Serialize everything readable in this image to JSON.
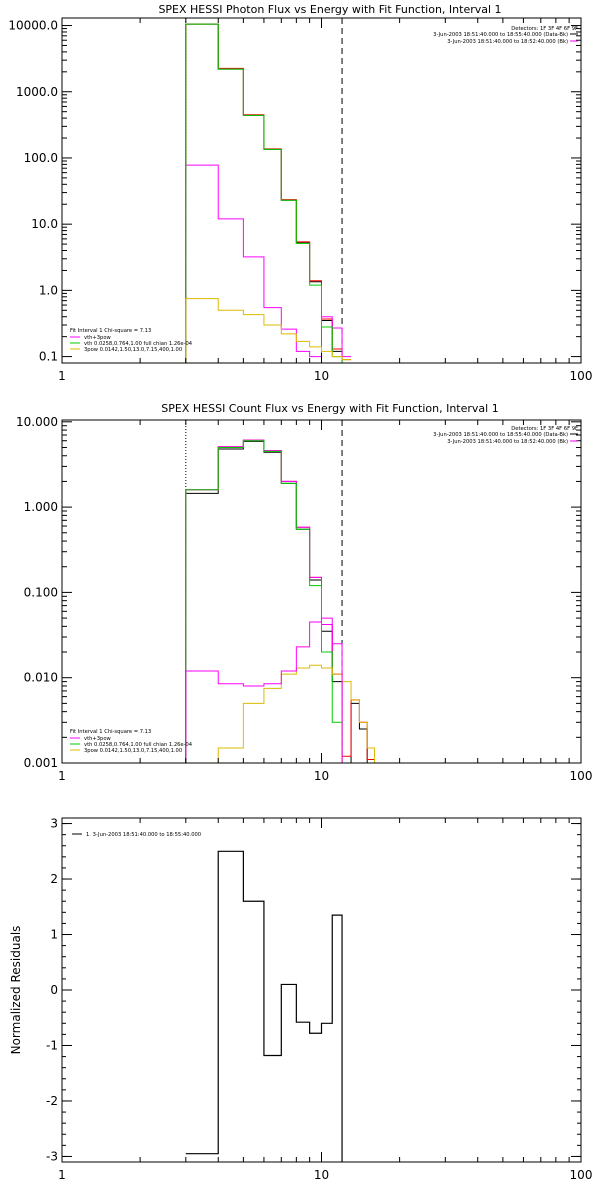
{
  "chart_data": [
    {
      "type": "line",
      "title": "SPEX HESSI Photon Flux vs Energy with Fit Function, Interval 1",
      "xscale": "log",
      "yscale": "log",
      "xlim": [
        1,
        100
      ],
      "ylim": [
        0.08,
        13000
      ],
      "x_ticks": [
        1,
        10,
        100
      ],
      "x_tick_labels": [
        "1",
        "10",
        "100"
      ],
      "y_ticks": [
        0.1,
        1,
        10,
        100,
        1000,
        10000
      ],
      "y_tick_labels": [
        "0.1",
        "1.0",
        "10.0",
        "100.0",
        "1000.0",
        "10000.0"
      ],
      "bin_edges": [
        3,
        4,
        5,
        6,
        7,
        8,
        9,
        10,
        11,
        12,
        13
      ],
      "vlines": [
        {
          "x": 3,
          "style": "dotted"
        },
        {
          "x": 12,
          "style": "dashed"
        }
      ],
      "series": [
        {
          "name": "",
          "color": "#000000",
          "values": [
            10500,
            2200,
            440,
            135,
            23,
            5.2,
            1.35,
            0.35,
            0.12,
            0.08
          ]
        },
        {
          "name": "",
          "color": "#ff0000",
          "values": [
            10500,
            2250,
            450,
            137,
            23.5,
            5.4,
            1.4,
            0.37,
            0.13,
            0.09
          ]
        },
        {
          "name": "vth+3pow",
          "color": "#ff00ff",
          "values": [
            78,
            12,
            3.2,
            0.55,
            0.26,
            0.12,
            0.1,
            0.4,
            0.27,
            0.1
          ]
        },
        {
          "name": "vth 0.0258,0.764,1.00  full chian 1.26e-04",
          "color": "#00cc00",
          "values": [
            10500,
            2200,
            440,
            135,
            23,
            5.1,
            1.2,
            0.28,
            0.1,
            0.08
          ]
        },
        {
          "name": "3pow 0.0142,1.50,13.0,7.15,400,1.00",
          "color": "#ddbb00",
          "values": [
            0.75,
            0.5,
            0.43,
            0.3,
            0.22,
            0.17,
            0.14,
            0.12,
            0.1,
            0.09
          ]
        }
      ],
      "legend_text": {
        "interval": "Fit Interval 1    Chi-square = 7.13",
        "detectors": "Detectors: 1F 3F 4F 6F 9F",
        "time_range_1": "3-Jun-2003 18:51:40.000 to 18:55:40.000 (Data-Bk)",
        "time_range_2": "3-Jun-2003 18:51:40.000 to 18:52:40.000 (Bk)"
      }
    },
    {
      "type": "line",
      "title": "SPEX HESSI Count Flux vs Energy with Fit Function, Interval 1",
      "xscale": "log",
      "yscale": "log",
      "xlim": [
        1,
        100
      ],
      "ylim": [
        0.001,
        10.5
      ],
      "x_ticks": [
        1,
        10,
        100
      ],
      "x_tick_labels": [
        "1",
        "10",
        "100"
      ],
      "y_ticks": [
        0.001,
        0.01,
        0.1,
        1,
        10
      ],
      "y_tick_labels": [
        "0.001",
        "0.010",
        "0.100",
        "1.000",
        "10.000"
      ],
      "bin_edges": [
        3,
        4,
        5,
        6,
        7,
        8,
        9,
        10,
        11,
        12,
        13,
        14,
        15,
        16,
        17,
        18
      ],
      "vlines": [
        {
          "x": 3,
          "style": "dotted"
        },
        {
          "x": 12,
          "style": "dashed"
        }
      ],
      "series": [
        {
          "name": "",
          "color": "#000000",
          "values": [
            1.45,
            4.8,
            5.9,
            4.4,
            1.9,
            0.55,
            0.14,
            0.035,
            0.009,
            0.0008,
            0.005,
            0.0025,
            0.0008,
            0.0008,
            0.0008
          ]
        },
        {
          "name": "",
          "color": "#ff0000",
          "values": [
            1.6,
            5.1,
            6.1,
            4.6,
            2.0,
            0.58,
            0.15,
            0.042,
            0.011,
            0.0012,
            0.0055,
            0.003,
            0.0011,
            0.0008,
            0.0008
          ]
        },
        {
          "name": "vth+3pow",
          "color": "#ff00ff",
          "values": [
            1.6,
            5.1,
            6.1,
            4.6,
            2.0,
            0.58,
            0.15,
            0.042,
            0.011,
            0.0008,
            0.0008,
            0.0008,
            0.0008,
            0.0008,
            0.0008
          ]
        },
        {
          "name": "vth 0.0258,0.764,1.00  full chian 1.26e-04",
          "color": "#00cc00",
          "values": [
            1.6,
            5.0,
            6.0,
            4.5,
            1.9,
            0.55,
            0.12,
            0.02,
            0.003,
            0.0008,
            0.0008,
            0.0008,
            0.0008,
            0.0008,
            0.0008
          ]
        },
        {
          "name": "3pow 0.0142,1.50,13.0,7.15,400,1.00",
          "color": "#ddbb00",
          "values": [
            0.0008,
            0.0015,
            0.005,
            0.0075,
            0.011,
            0.013,
            0.014,
            0.013,
            0.011,
            0.009,
            0.0055,
            0.003,
            0.0015,
            0.0008,
            0.0008
          ]
        },
        {
          "name": "",
          "color": "#ff00ff",
          "values": [
            0.012,
            0.0085,
            0.008,
            0.0085,
            0.012,
            0.023,
            0.045,
            0.05,
            0.025,
            0.0008,
            0.0008,
            0.0008,
            0.0008,
            0.0008,
            0.0008
          ]
        }
      ],
      "legend_text": {
        "interval": "Fit Interval 1    Chi-square = 7.13",
        "detectors": "Detectors: 1F 3F 4F 6F 9F",
        "time_range_1": "3-Jun-2003 18:51:40.000 to 18:55:40.000 (Data-Bk)",
        "time_range_2": "3-Jun-2003 18:51:40.000 to 18:52:40.000 (Bk)"
      }
    },
    {
      "type": "line",
      "title": "",
      "xlabel": "",
      "ylabel": "Normalized Residuals",
      "xscale": "log",
      "yscale": "linear",
      "xlim": [
        1,
        100
      ],
      "ylim": [
        -3.1,
        3.1
      ],
      "x_ticks": [
        1,
        10,
        100
      ],
      "x_tick_labels": [
        "1",
        "10",
        "100"
      ],
      "y_ticks": [
        -3,
        -2,
        -1,
        0,
        1,
        2,
        3
      ],
      "y_tick_labels": [
        "-3",
        "-2",
        "-1",
        "0",
        "1",
        "2",
        "3"
      ],
      "bin_edges": [
        3,
        4,
        5,
        6,
        7,
        8,
        9,
        10,
        11,
        12
      ],
      "residuals": [
        -2.95,
        2.5,
        1.6,
        -1.18,
        0.1,
        -0.58,
        -0.78,
        -0.6,
        1.35
      ],
      "drop_to": -3.1,
      "series": [
        {
          "name": "1.  3-Jun-2003 18:51:40.000 to 18:55:40.000",
          "color": "#000000"
        }
      ],
      "legend_text": {
        "entry": "1.  3-Jun-2003 18:51:40.000 to 18:55:40.000"
      }
    }
  ]
}
